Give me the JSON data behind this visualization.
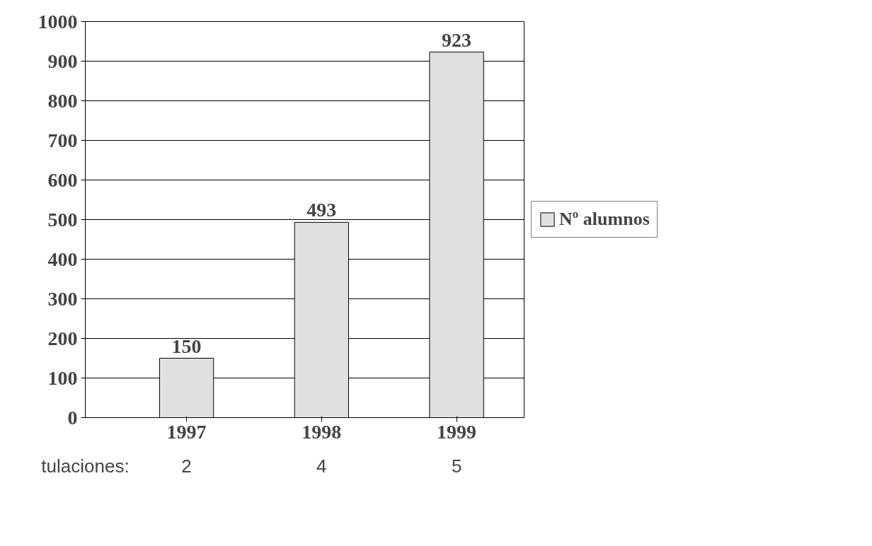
{
  "chart_data": {
    "type": "bar",
    "categories": [
      "1997",
      "1998",
      "1999"
    ],
    "series": [
      {
        "name": "Nº alumnos",
        "color": "#e0e0e0",
        "values": [
          150,
          493,
          923
        ]
      }
    ],
    "ylim": [
      0,
      1000
    ],
    "yticks": [
      0,
      100,
      200,
      300,
      400,
      500,
      600,
      700,
      800,
      900,
      1000
    ],
    "grid": "y",
    "legend": "right",
    "data_labels": true,
    "annotations": [
      "tulaciones:",
      "2",
      "4",
      "5"
    ]
  }
}
